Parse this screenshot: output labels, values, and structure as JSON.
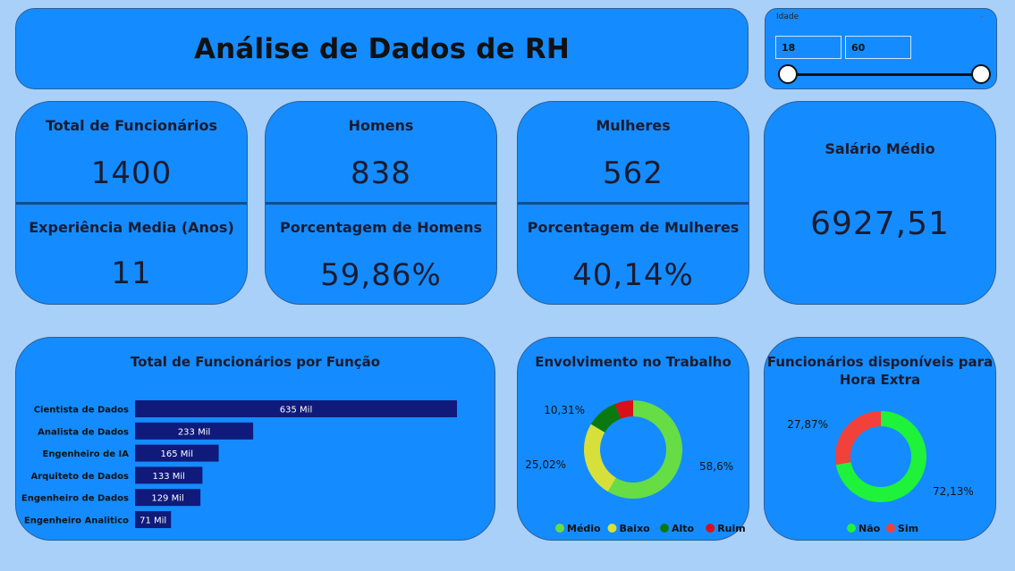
{
  "header": {
    "title": "Análise de Dados de RH"
  },
  "slicer": {
    "label": "Idade",
    "min": "18",
    "max": "60",
    "range_min": 18,
    "range_max": 60
  },
  "kpis": {
    "total": {
      "label": "Total de Funcionários",
      "value": "1400"
    },
    "exp": {
      "label": "Experiência Media (Anos)",
      "value": "11"
    },
    "homens": {
      "label": "Homens",
      "value": "838"
    },
    "pct_homens": {
      "label": "Porcentagem de Homens",
      "value": "59,86%"
    },
    "mulheres": {
      "label": "Mulheres",
      "value": "562"
    },
    "pct_mulheres": {
      "label": "Porcentagem de Mulheres",
      "value": "40,14%"
    },
    "salario": {
      "label": "Salário Médio",
      "value": "6927,51"
    }
  },
  "chart_data": [
    {
      "type": "bar",
      "orientation": "horizontal",
      "title": "Total de Funcionários por Função",
      "categories": [
        "Cientista de Dados",
        "Analista de Dados",
        "Engenheiro de IA",
        "Arquiteto de Dados",
        "Engenheiro de Dados",
        "Engenheiro Analitico"
      ],
      "values": [
        635,
        233,
        165,
        133,
        129,
        71
      ],
      "labels": [
        "635 Mil",
        "233 Mil",
        "165 Mil",
        "133 Mil",
        "129 Mil",
        "71 Mil"
      ],
      "color": "#0f1a7a"
    },
    {
      "type": "pie",
      "donut": true,
      "title": "Envolvimento no Trabalho",
      "slices": [
        {
          "name": "Médio",
          "value": 58.6,
          "label": "58,6%",
          "color": "#66dd44"
        },
        {
          "name": "Baixo",
          "value": 25.02,
          "label": "25,02%",
          "color": "#d7e03a"
        },
        {
          "name": "Alto",
          "value": 10.31,
          "label": "10,31%",
          "color": "#0a7a10"
        },
        {
          "name": "Ruim",
          "value": 6.07,
          "label": "",
          "color": "#d8101a"
        }
      ],
      "legend": "bottom"
    },
    {
      "type": "pie",
      "donut": true,
      "title_lines": [
        "Funcionários disponíveis para",
        "Hora Extra"
      ],
      "slices": [
        {
          "name": "Não",
          "value": 72.13,
          "label": "72,13%",
          "color": "#1ef23a"
        },
        {
          "name": "Sim",
          "value": 27.87,
          "label": "27,87%",
          "color": "#f2403a"
        }
      ],
      "legend": "bottom"
    }
  ]
}
